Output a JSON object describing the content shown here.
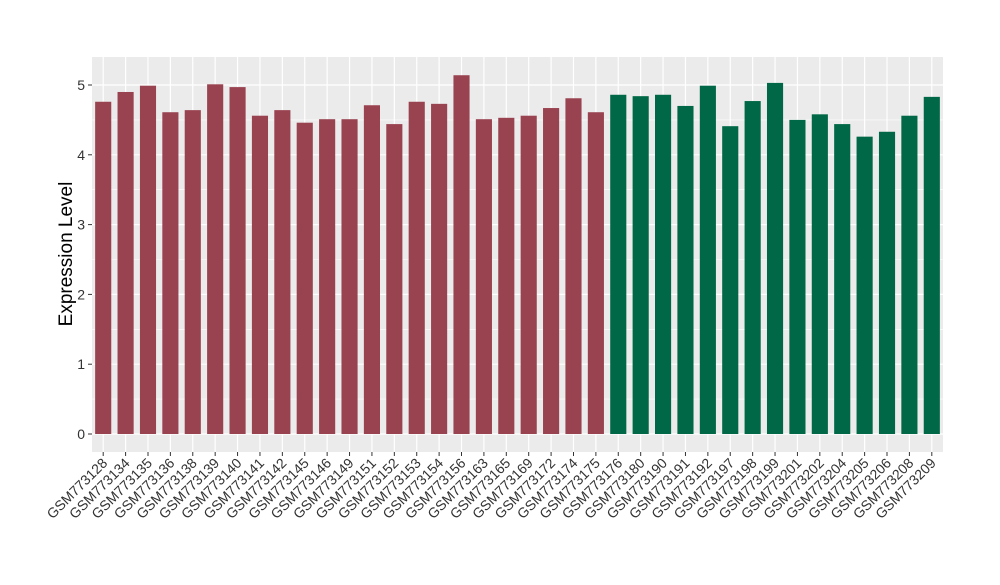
{
  "chart_data": {
    "type": "bar",
    "title": "",
    "xlabel": "",
    "ylabel": "Expression Level",
    "ylim": [
      0,
      5.2
    ],
    "yticks": [
      0,
      1,
      2,
      3,
      4,
      5
    ],
    "grid": true,
    "colors": {
      "group1": "#9a4350",
      "group2": "#006846",
      "panel": "#ebebeb",
      "grid": "#ffffff"
    },
    "categories": [
      "GSM773128",
      "GSM773134",
      "GSM773135",
      "GSM773136",
      "GSM773138",
      "GSM773139",
      "GSM773140",
      "GSM773141",
      "GSM773142",
      "GSM773145",
      "GSM773146",
      "GSM773149",
      "GSM773151",
      "GSM773152",
      "GSM773153",
      "GSM773154",
      "GSM773156",
      "GSM773163",
      "GSM773165",
      "GSM773169",
      "GSM773172",
      "GSM773174",
      "GSM773175",
      "GSM773176",
      "GSM773180",
      "GSM773190",
      "GSM773191",
      "GSM773192",
      "GSM773197",
      "GSM773198",
      "GSM773199",
      "GSM773201",
      "GSM773202",
      "GSM773204",
      "GSM773205",
      "GSM773206",
      "GSM773208",
      "GSM773209"
    ],
    "values": [
      4.76,
      4.9,
      4.99,
      4.61,
      4.64,
      5.01,
      4.97,
      4.56,
      4.64,
      4.46,
      4.51,
      4.51,
      4.71,
      4.44,
      4.76,
      4.73,
      5.14,
      4.51,
      4.53,
      4.56,
      4.67,
      4.81,
      4.61,
      4.86,
      4.84,
      4.86,
      4.7,
      4.99,
      4.41,
      4.77,
      5.03,
      4.5,
      4.58,
      4.44,
      4.26,
      4.33,
      4.56,
      4.83
    ],
    "groups": [
      "group1",
      "group1",
      "group1",
      "group1",
      "group1",
      "group1",
      "group1",
      "group1",
      "group1",
      "group1",
      "group1",
      "group1",
      "group1",
      "group1",
      "group1",
      "group1",
      "group1",
      "group1",
      "group1",
      "group1",
      "group1",
      "group1",
      "group1",
      "group2",
      "group2",
      "group2",
      "group2",
      "group2",
      "group2",
      "group2",
      "group2",
      "group2",
      "group2",
      "group2",
      "group2",
      "group2",
      "group2",
      "group2"
    ]
  }
}
